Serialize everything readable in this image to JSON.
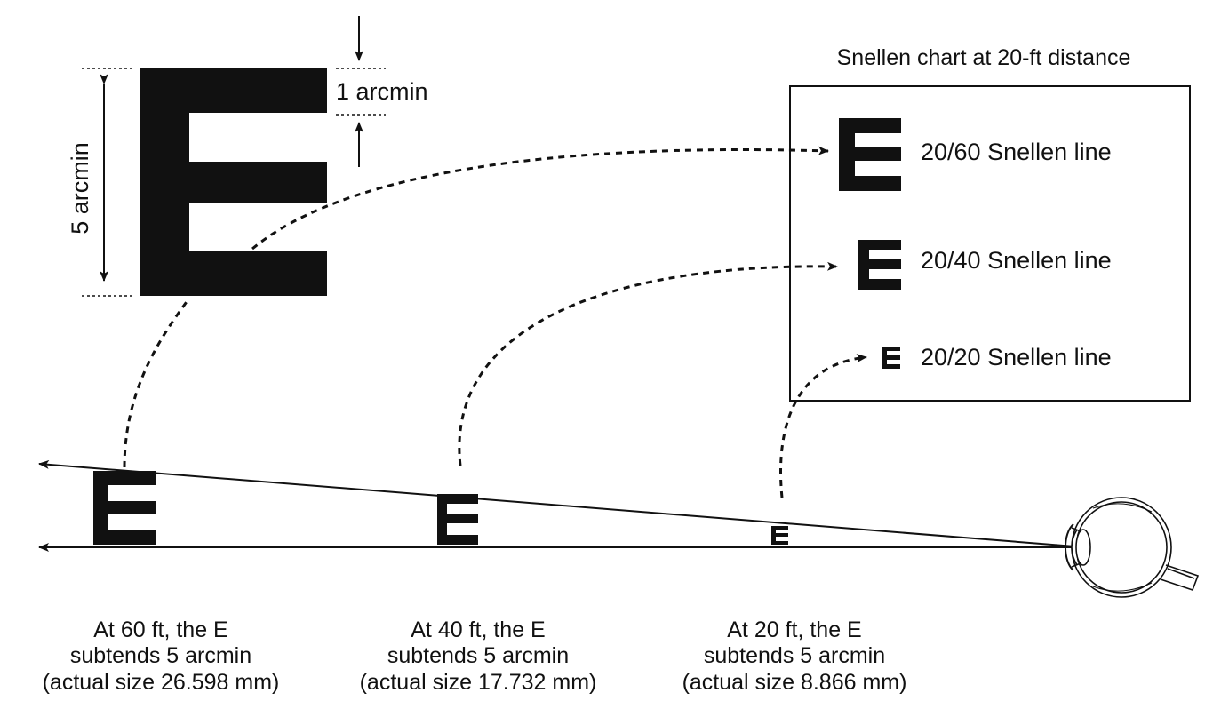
{
  "chart": {
    "title": "Snellen chart at 20-ft distance",
    "big_letter": "E",
    "height_label": "5 arcmin",
    "stroke_label": "1 arcmin",
    "lines": [
      {
        "letter": "E",
        "label": "20/60 Snellen line"
      },
      {
        "letter": "E",
        "label": "20/40 Snellen line"
      },
      {
        "letter": "E",
        "label": "20/20 Snellen line"
      }
    ]
  },
  "distances": [
    {
      "letter": "E",
      "caption": [
        "At 60 ft, the E",
        "subtends 5 arcmin",
        "(actual size 26.598 mm)"
      ]
    },
    {
      "letter": "E",
      "caption": [
        "At 40 ft, the E",
        "subtends 5 arcmin",
        "(actual size 17.732 mm)"
      ]
    },
    {
      "letter": "E",
      "caption": [
        "At 20 ft, the E",
        "subtends 5 arcmin",
        "(actual size 8.866 mm)"
      ]
    }
  ],
  "colors": {
    "ink": "#111111",
    "background": "#ffffff"
  },
  "icons": [
    "eye-icon",
    "arrow-icon"
  ]
}
